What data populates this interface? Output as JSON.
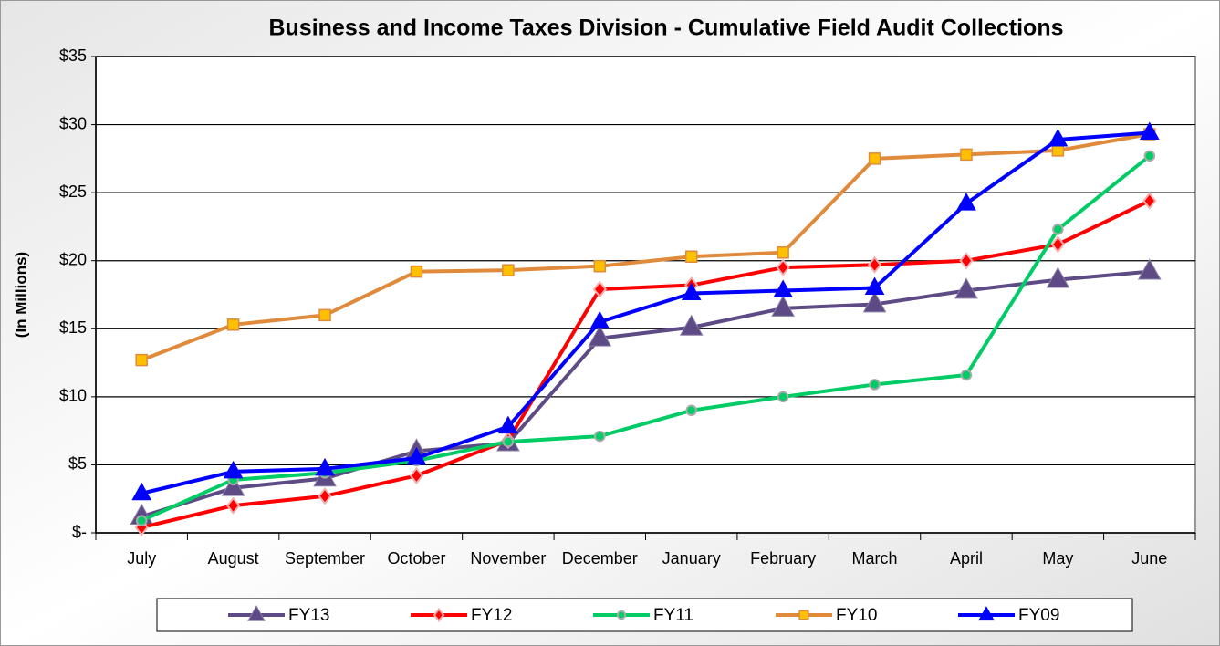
{
  "chart_data": {
    "type": "line",
    "title": "Business and Income Taxes Division - Cumulative Field Audit Collections",
    "ylabel": "(In Millions)",
    "categories": [
      "July",
      "August",
      "September",
      "October",
      "November",
      "December",
      "January",
      "February",
      "March",
      "April",
      "May",
      "June"
    ],
    "ylim": [
      0,
      35
    ],
    "yticks": [
      {
        "value": 0,
        "label": "$-"
      },
      {
        "value": 5,
        "label": "$5"
      },
      {
        "value": 10,
        "label": "$10"
      },
      {
        "value": 15,
        "label": "$15"
      },
      {
        "value": 20,
        "label": "$20"
      },
      {
        "value": 25,
        "label": "$25"
      },
      {
        "value": 30,
        "label": "$30"
      },
      {
        "value": 35,
        "label": "$35"
      }
    ],
    "grid": true,
    "legend": "bottom",
    "series": [
      {
        "name": "FY13",
        "color": "#5e4b86",
        "marker": "triangle",
        "values": [
          1.2,
          3.3,
          4.0,
          6.0,
          6.6,
          14.3,
          15.1,
          16.5,
          16.8,
          17.8,
          18.6,
          19.2
        ]
      },
      {
        "name": "FY12",
        "color": "#ff0000",
        "marker": "diamond",
        "values": [
          0.4,
          2.0,
          2.7,
          4.2,
          6.8,
          17.9,
          18.2,
          19.5,
          19.7,
          20.0,
          21.2,
          24.4
        ]
      },
      {
        "name": "FY11",
        "color": "#00cc66",
        "marker": "circle",
        "values": [
          0.9,
          3.9,
          4.4,
          5.3,
          6.7,
          7.1,
          9.0,
          10.0,
          10.9,
          11.6,
          22.3,
          27.7
        ]
      },
      {
        "name": "FY10",
        "color": "#e08a3c",
        "marker": "square",
        "values": [
          12.7,
          15.3,
          16.0,
          19.2,
          19.3,
          19.6,
          20.3,
          20.6,
          27.5,
          27.8,
          28.1,
          29.3
        ]
      },
      {
        "name": "FY09",
        "color": "#0000ff",
        "marker": "triangle",
        "values": [
          2.9,
          4.5,
          4.7,
          5.5,
          7.8,
          15.5,
          17.6,
          17.8,
          18.0,
          24.2,
          28.9,
          29.4
        ]
      }
    ]
  }
}
